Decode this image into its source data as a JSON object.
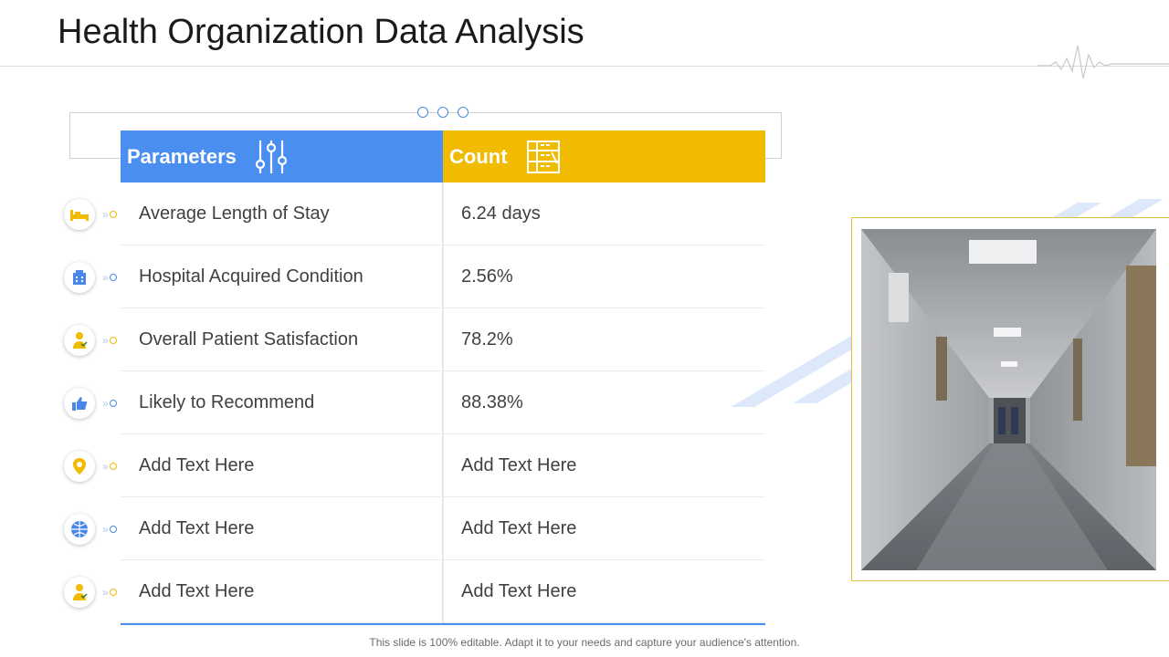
{
  "title": "Health Organization Data Analysis",
  "table": {
    "header_parameters": "Parameters",
    "header_count": "Count",
    "rows": [
      {
        "parameter": "Average Length of Stay",
        "count": "6.24 days",
        "icon": "bed-icon",
        "accent": "#f0bb00"
      },
      {
        "parameter": "Hospital Acquired Condition",
        "count": "2.56%",
        "icon": "hospital-building-icon",
        "accent": "#4a86e8"
      },
      {
        "parameter": "Overall Patient Satisfaction",
        "count": "78.2%",
        "icon": "doctor-icon",
        "accent": "#f0bb00"
      },
      {
        "parameter": "Likely to Recommend",
        "count": "88.38%",
        "icon": "thumbs-up-icon",
        "accent": "#4a86e8"
      },
      {
        "parameter": "Add Text Here",
        "count": "Add Text Here",
        "icon": "location-pin-icon",
        "accent": "#f0bb00"
      },
      {
        "parameter": "Add Text Here",
        "count": "Add Text Here",
        "icon": "globe-icon",
        "accent": "#4a86e8"
      },
      {
        "parameter": "Add Text Here",
        "count": "Add Text Here",
        "icon": "doctor-icon",
        "accent": "#f0bb00"
      }
    ]
  },
  "footer": "This slide is 100% editable. Adapt it to your needs and capture your audience's attention.",
  "colors": {
    "blue": "#4a8ef0",
    "yellow": "#f0bb00",
    "frame": "#e6c23c"
  }
}
